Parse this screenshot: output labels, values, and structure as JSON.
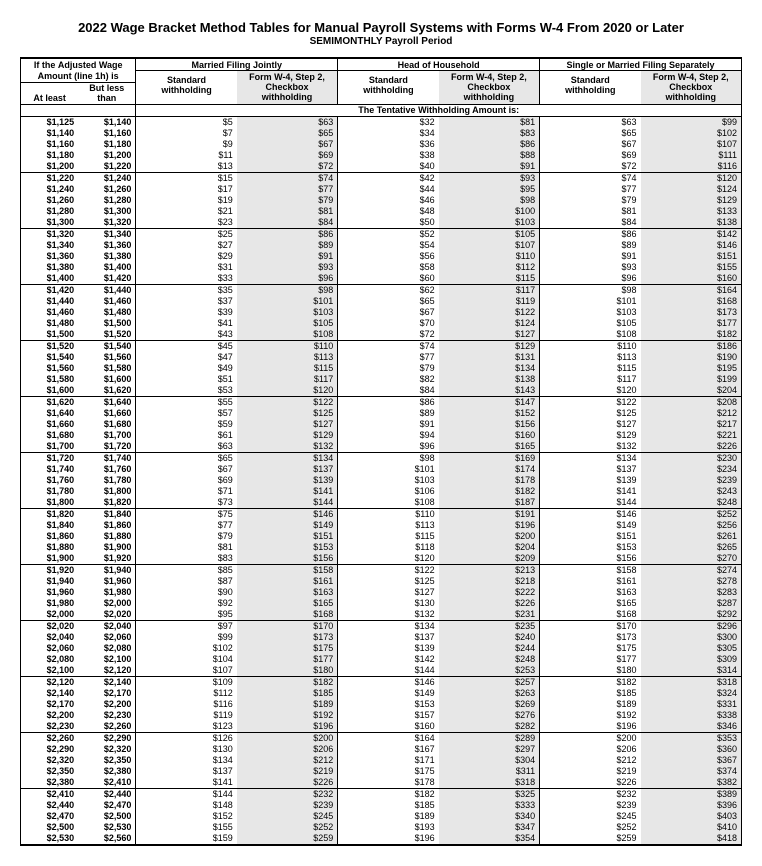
{
  "title": "2022 Wage Bracket Method Tables for Manual Payroll Systems with Forms W-4 From 2020 or Later",
  "subtitle": "SEMIMONTHLY Payroll Period",
  "header": {
    "adjusted_wage_line1": "If the Adjusted Wage",
    "adjusted_wage_line2": "Amount (line 1h) is",
    "at_least": "At least",
    "but_less_than": "But less than",
    "tentative": "The Tentative Withholding Amount is:",
    "std_label": "Standard withholding",
    "chk_line1": "Form W-4, Step 2,",
    "chk_line2": "Checkbox",
    "chk_line3": "withholding",
    "filing_statuses": [
      "Married Filing Jointly",
      "Head of Household",
      "Single or Married Filing Separately"
    ]
  },
  "colors": {
    "shade_bg": "#e7e7e7",
    "border": "#000000",
    "text": "#000000",
    "page_bg": "#ffffff"
  },
  "rows": [
    [
      "$1,125",
      "$1,140",
      "$5",
      "$63",
      "$32",
      "$81",
      "$63",
      "$99"
    ],
    [
      "$1,140",
      "$1,160",
      "$7",
      "$65",
      "$34",
      "$83",
      "$65",
      "$102"
    ],
    [
      "$1,160",
      "$1,180",
      "$9",
      "$67",
      "$36",
      "$86",
      "$67",
      "$107"
    ],
    [
      "$1,180",
      "$1,200",
      "$11",
      "$69",
      "$38",
      "$88",
      "$69",
      "$111"
    ],
    [
      "$1,200",
      "$1,220",
      "$13",
      "$72",
      "$40",
      "$91",
      "$72",
      "$116"
    ],
    [
      "$1,220",
      "$1,240",
      "$15",
      "$74",
      "$42",
      "$93",
      "$74",
      "$120"
    ],
    [
      "$1,240",
      "$1,260",
      "$17",
      "$77",
      "$44",
      "$95",
      "$77",
      "$124"
    ],
    [
      "$1,260",
      "$1,280",
      "$19",
      "$79",
      "$46",
      "$98",
      "$79",
      "$129"
    ],
    [
      "$1,280",
      "$1,300",
      "$21",
      "$81",
      "$48",
      "$100",
      "$81",
      "$133"
    ],
    [
      "$1,300",
      "$1,320",
      "$23",
      "$84",
      "$50",
      "$103",
      "$84",
      "$138"
    ],
    [
      "$1,320",
      "$1,340",
      "$25",
      "$86",
      "$52",
      "$105",
      "$86",
      "$142"
    ],
    [
      "$1,340",
      "$1,360",
      "$27",
      "$89",
      "$54",
      "$107",
      "$89",
      "$146"
    ],
    [
      "$1,360",
      "$1,380",
      "$29",
      "$91",
      "$56",
      "$110",
      "$91",
      "$151"
    ],
    [
      "$1,380",
      "$1,400",
      "$31",
      "$93",
      "$58",
      "$112",
      "$93",
      "$155"
    ],
    [
      "$1,400",
      "$1,420",
      "$33",
      "$96",
      "$60",
      "$115",
      "$96",
      "$160"
    ],
    [
      "$1,420",
      "$1,440",
      "$35",
      "$98",
      "$62",
      "$117",
      "$98",
      "$164"
    ],
    [
      "$1,440",
      "$1,460",
      "$37",
      "$101",
      "$65",
      "$119",
      "$101",
      "$168"
    ],
    [
      "$1,460",
      "$1,480",
      "$39",
      "$103",
      "$67",
      "$122",
      "$103",
      "$173"
    ],
    [
      "$1,480",
      "$1,500",
      "$41",
      "$105",
      "$70",
      "$124",
      "$105",
      "$177"
    ],
    [
      "$1,500",
      "$1,520",
      "$43",
      "$108",
      "$72",
      "$127",
      "$108",
      "$182"
    ],
    [
      "$1,520",
      "$1,540",
      "$45",
      "$110",
      "$74",
      "$129",
      "$110",
      "$186"
    ],
    [
      "$1,540",
      "$1,560",
      "$47",
      "$113",
      "$77",
      "$131",
      "$113",
      "$190"
    ],
    [
      "$1,560",
      "$1,580",
      "$49",
      "$115",
      "$79",
      "$134",
      "$115",
      "$195"
    ],
    [
      "$1,580",
      "$1,600",
      "$51",
      "$117",
      "$82",
      "$138",
      "$117",
      "$199"
    ],
    [
      "$1,600",
      "$1,620",
      "$53",
      "$120",
      "$84",
      "$143",
      "$120",
      "$204"
    ],
    [
      "$1,620",
      "$1,640",
      "$55",
      "$122",
      "$86",
      "$147",
      "$122",
      "$208"
    ],
    [
      "$1,640",
      "$1,660",
      "$57",
      "$125",
      "$89",
      "$152",
      "$125",
      "$212"
    ],
    [
      "$1,660",
      "$1,680",
      "$59",
      "$127",
      "$91",
      "$156",
      "$127",
      "$217"
    ],
    [
      "$1,680",
      "$1,700",
      "$61",
      "$129",
      "$94",
      "$160",
      "$129",
      "$221"
    ],
    [
      "$1,700",
      "$1,720",
      "$63",
      "$132",
      "$96",
      "$165",
      "$132",
      "$226"
    ],
    [
      "$1,720",
      "$1,740",
      "$65",
      "$134",
      "$98",
      "$169",
      "$134",
      "$230"
    ],
    [
      "$1,740",
      "$1,760",
      "$67",
      "$137",
      "$101",
      "$174",
      "$137",
      "$234"
    ],
    [
      "$1,760",
      "$1,780",
      "$69",
      "$139",
      "$103",
      "$178",
      "$139",
      "$239"
    ],
    [
      "$1,780",
      "$1,800",
      "$71",
      "$141",
      "$106",
      "$182",
      "$141",
      "$243"
    ],
    [
      "$1,800",
      "$1,820",
      "$73",
      "$144",
      "$108",
      "$187",
      "$144",
      "$248"
    ],
    [
      "$1,820",
      "$1,840",
      "$75",
      "$146",
      "$110",
      "$191",
      "$146",
      "$252"
    ],
    [
      "$1,840",
      "$1,860",
      "$77",
      "$149",
      "$113",
      "$196",
      "$149",
      "$256"
    ],
    [
      "$1,860",
      "$1,880",
      "$79",
      "$151",
      "$115",
      "$200",
      "$151",
      "$261"
    ],
    [
      "$1,880",
      "$1,900",
      "$81",
      "$153",
      "$118",
      "$204",
      "$153",
      "$265"
    ],
    [
      "$1,900",
      "$1,920",
      "$83",
      "$156",
      "$120",
      "$209",
      "$156",
      "$270"
    ],
    [
      "$1,920",
      "$1,940",
      "$85",
      "$158",
      "$122",
      "$213",
      "$158",
      "$274"
    ],
    [
      "$1,940",
      "$1,960",
      "$87",
      "$161",
      "$125",
      "$218",
      "$161",
      "$278"
    ],
    [
      "$1,960",
      "$1,980",
      "$90",
      "$163",
      "$127",
      "$222",
      "$163",
      "$283"
    ],
    [
      "$1,980",
      "$2,000",
      "$92",
      "$165",
      "$130",
      "$226",
      "$165",
      "$287"
    ],
    [
      "$2,000",
      "$2,020",
      "$95",
      "$168",
      "$132",
      "$231",
      "$168",
      "$292"
    ],
    [
      "$2,020",
      "$2,040",
      "$97",
      "$170",
      "$134",
      "$235",
      "$170",
      "$296"
    ],
    [
      "$2,040",
      "$2,060",
      "$99",
      "$173",
      "$137",
      "$240",
      "$173",
      "$300"
    ],
    [
      "$2,060",
      "$2,080",
      "$102",
      "$175",
      "$139",
      "$244",
      "$175",
      "$305"
    ],
    [
      "$2,080",
      "$2,100",
      "$104",
      "$177",
      "$142",
      "$248",
      "$177",
      "$309"
    ],
    [
      "$2,100",
      "$2,120",
      "$107",
      "$180",
      "$144",
      "$253",
      "$180",
      "$314"
    ],
    [
      "$2,120",
      "$2,140",
      "$109",
      "$182",
      "$146",
      "$257",
      "$182",
      "$318"
    ],
    [
      "$2,140",
      "$2,170",
      "$112",
      "$185",
      "$149",
      "$263",
      "$185",
      "$324"
    ],
    [
      "$2,170",
      "$2,200",
      "$116",
      "$189",
      "$153",
      "$269",
      "$189",
      "$331"
    ],
    [
      "$2,200",
      "$2,230",
      "$119",
      "$192",
      "$157",
      "$276",
      "$192",
      "$338"
    ],
    [
      "$2,230",
      "$2,260",
      "$123",
      "$196",
      "$160",
      "$282",
      "$196",
      "$346"
    ],
    [
      "$2,260",
      "$2,290",
      "$126",
      "$200",
      "$164",
      "$289",
      "$200",
      "$353"
    ],
    [
      "$2,290",
      "$2,320",
      "$130",
      "$206",
      "$167",
      "$297",
      "$206",
      "$360"
    ],
    [
      "$2,320",
      "$2,350",
      "$134",
      "$212",
      "$171",
      "$304",
      "$212",
      "$367"
    ],
    [
      "$2,350",
      "$2,380",
      "$137",
      "$219",
      "$175",
      "$311",
      "$219",
      "$374"
    ],
    [
      "$2,380",
      "$2,410",
      "$141",
      "$226",
      "$178",
      "$318",
      "$226",
      "$382"
    ],
    [
      "$2,410",
      "$2,440",
      "$144",
      "$232",
      "$182",
      "$325",
      "$232",
      "$389"
    ],
    [
      "$2,440",
      "$2,470",
      "$148",
      "$239",
      "$185",
      "$333",
      "$239",
      "$396"
    ],
    [
      "$2,470",
      "$2,500",
      "$152",
      "$245",
      "$189",
      "$340",
      "$245",
      "$403"
    ],
    [
      "$2,500",
      "$2,530",
      "$155",
      "$252",
      "$193",
      "$347",
      "$252",
      "$410"
    ],
    [
      "$2,530",
      "$2,560",
      "$159",
      "$259",
      "$196",
      "$354",
      "$259",
      "$418"
    ]
  ]
}
